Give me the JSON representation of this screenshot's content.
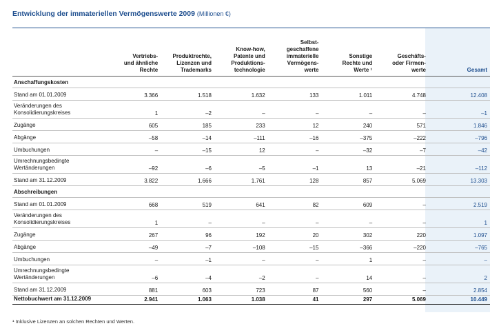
{
  "title": "Entwicklung der immateriellen Vermögenswerte 2009",
  "unit": "(Millionen €)",
  "columns": [
    "Vertriebs-\nund ähnliche\nRechte",
    "Produktrechte,\nLizenzen und\nTrademarks",
    "Know-how,\nPatente und\nProduktions-\ntechnologie",
    "Selbst-\ngeschaffene\nimmaterielle\nVermögens-\nwerte",
    "Sonstige\nRechte und\nWerte ¹",
    "Geschäfts-\noder Firmen-\nwerte",
    "Gesamt"
  ],
  "rows": [
    {
      "type": "section",
      "label": "Anschaffungskosten"
    },
    {
      "type": "r1",
      "label": "Stand am 01.01.2009",
      "values": [
        "3.366",
        "1.518",
        "1.632",
        "133",
        "1.011",
        "4.748",
        "12.408"
      ]
    },
    {
      "type": "r2",
      "label": "Veränderungen des\nKonsolidierungskreises",
      "values": [
        "1",
        "–2",
        "–",
        "–",
        "–",
        "–",
        "–1"
      ]
    },
    {
      "type": "r1",
      "label": "Zugänge",
      "values": [
        "605",
        "185",
        "233",
        "12",
        "240",
        "571",
        "1.846"
      ]
    },
    {
      "type": "r1",
      "label": "Abgänge",
      "values": [
        "–58",
        "–14",
        "–111",
        "–16",
        "–375",
        "–222",
        "–796"
      ]
    },
    {
      "type": "r1",
      "label": "Umbuchungen",
      "values": [
        "–",
        "–15",
        "12",
        "–",
        "–32",
        "–7",
        "–42"
      ]
    },
    {
      "type": "r2",
      "label": "Umrechnungsbedingte\nWertänderungen",
      "values": [
        "–92",
        "–6",
        "–5",
        "–1",
        "13",
        "–21",
        "–112"
      ]
    },
    {
      "type": "r1",
      "label": "Stand am 31.12.2009",
      "values": [
        "3.822",
        "1.666",
        "1.761",
        "128",
        "857",
        "5.069",
        "13.303"
      ]
    },
    {
      "type": "section",
      "label": "Abschreibungen"
    },
    {
      "type": "r1",
      "label": "Stand am 01.01.2009",
      "values": [
        "668",
        "519",
        "641",
        "82",
        "609",
        "–",
        "2.519"
      ]
    },
    {
      "type": "r2",
      "label": "Veränderungen des\nKonsolidierungskreises",
      "values": [
        "1",
        "–",
        "–",
        "–",
        "–",
        "–",
        "1"
      ]
    },
    {
      "type": "r1",
      "label": "Zugänge",
      "values": [
        "267",
        "96",
        "192",
        "20",
        "302",
        "220",
        "1.097"
      ]
    },
    {
      "type": "r1",
      "label": "Abgänge",
      "values": [
        "–49",
        "–7",
        "–108",
        "–15",
        "–366",
        "–220",
        "–765"
      ]
    },
    {
      "type": "r1",
      "label": "Umbuchungen",
      "values": [
        "–",
        "–1",
        "–",
        "–",
        "1",
        "–",
        "–"
      ]
    },
    {
      "type": "r2",
      "label": "Umrechnungsbedingte\nWertänderungen",
      "values": [
        "–6",
        "–4",
        "–2",
        "–",
        "14",
        "–",
        "2"
      ]
    },
    {
      "type": "r1",
      "label": "Stand am 31.12.2009",
      "values": [
        "881",
        "603",
        "723",
        "87",
        "560",
        "–",
        "2.854"
      ]
    },
    {
      "type": "final",
      "label": "Nettobuchwert am 31.12.2009",
      "values": [
        "2.941",
        "1.063",
        "1.038",
        "41",
        "297",
        "5.069",
        "10.449"
      ]
    }
  ],
  "footnote": "¹ Inklusive Lizenzen an solchen Rechten und Werten."
}
